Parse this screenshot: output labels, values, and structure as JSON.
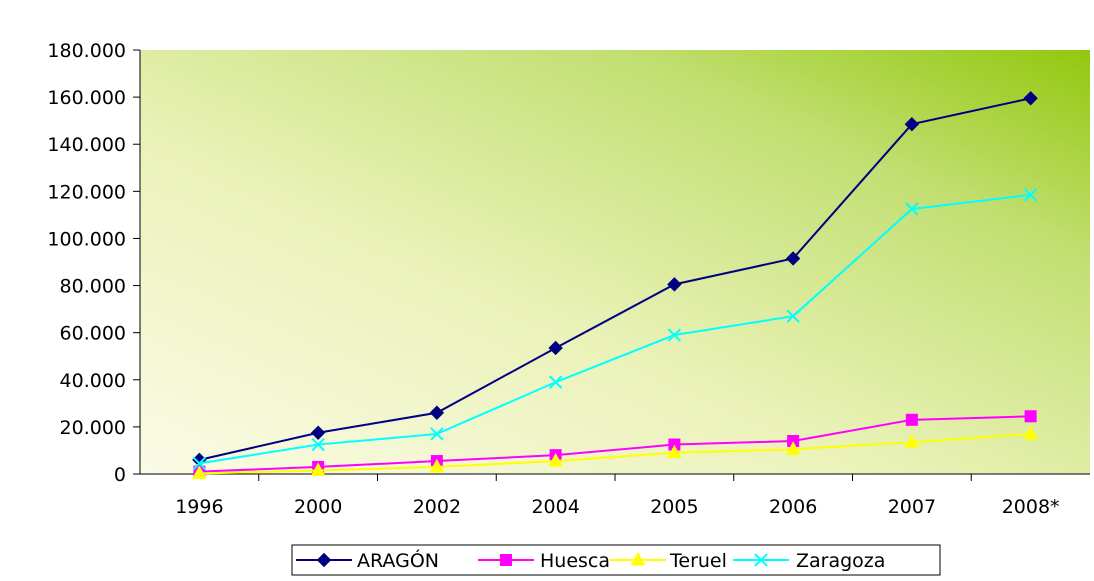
{
  "chart_data": {
    "type": "line",
    "categories": [
      "1996",
      "2000",
      "2002",
      "2004",
      "2005",
      "2006",
      "2007",
      "2008*"
    ],
    "series": [
      {
        "name": "ARAGÓN",
        "color": "#000080",
        "marker": "diamond",
        "values": [
          6000,
          17500,
          26000,
          53500,
          80500,
          91500,
          148500,
          159500
        ]
      },
      {
        "name": "Huesca",
        "color": "#FF00FF",
        "marker": "square",
        "values": [
          1000,
          3000,
          5500,
          8000,
          12500,
          14000,
          23000,
          24500
        ]
      },
      {
        "name": "Teruel",
        "color": "#FFFF00",
        "marker": "triangle",
        "values": [
          200,
          1500,
          3000,
          5500,
          9000,
          10500,
          13500,
          17000
        ]
      },
      {
        "name": "Zaragoza",
        "color": "#00FFFF",
        "marker": "x",
        "values": [
          4500,
          12500,
          17000,
          39000,
          59000,
          67000,
          112500,
          118500
        ]
      }
    ],
    "y_ticks": [
      0,
      20000,
      40000,
      60000,
      80000,
      100000,
      120000,
      140000,
      160000,
      180000
    ],
    "y_tick_labels": [
      "0",
      "20.000",
      "40.000",
      "60.000",
      "80.000",
      "100.000",
      "120.000",
      "140.000",
      "160.000",
      "180.000"
    ],
    "ylim": [
      0,
      180000
    ],
    "grid": false,
    "legend_position": "bottom",
    "plot_background": "gradient: pale yellow (bottom-left) to lime green (top-right)",
    "title": "",
    "xlabel": "",
    "ylabel": ""
  }
}
